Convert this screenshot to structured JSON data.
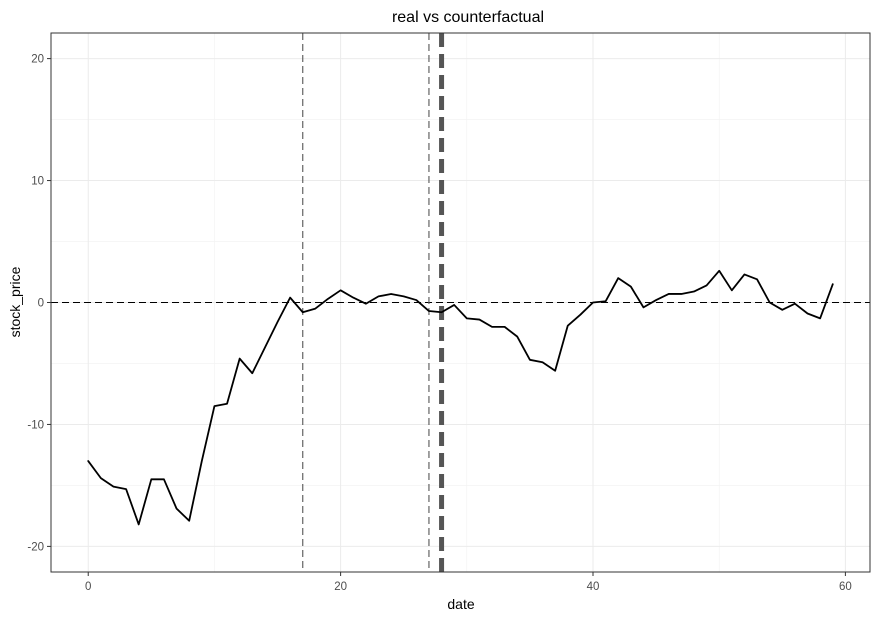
{
  "chart_data": {
    "type": "line",
    "title": "real vs counterfactual",
    "xlabel": "date",
    "ylabel": "stock_price",
    "xlim": [
      -2.95,
      61.95
    ],
    "ylim": [
      -22.1,
      22.1
    ],
    "x_ticks": [
      0,
      20,
      40,
      60
    ],
    "y_ticks": [
      -20,
      -10,
      0,
      10,
      20
    ],
    "grid": true,
    "series": [
      {
        "color": "#000000",
        "x": [
          0,
          1,
          2,
          3,
          4,
          5,
          6,
          7,
          8,
          9,
          10,
          11,
          12,
          13,
          14,
          15,
          16,
          17,
          18,
          19,
          20,
          21,
          22,
          23,
          24,
          25,
          26,
          27,
          28,
          29,
          30,
          31,
          32,
          33,
          34,
          35,
          36,
          37,
          38,
          39,
          40,
          41,
          42,
          43,
          44,
          45,
          46,
          47,
          48,
          49,
          50,
          51,
          52,
          53,
          54,
          55,
          56,
          57,
          58,
          59
        ],
        "y": [
          -13.0,
          -14.4,
          -15.1,
          -15.3,
          -18.2,
          -14.5,
          -14.5,
          -16.9,
          -17.9,
          -13.0,
          -8.5,
          -8.3,
          -4.6,
          -5.8,
          -3.7,
          -1.6,
          0.4,
          -0.8,
          -0.5,
          0.3,
          1.0,
          0.4,
          -0.1,
          0.5,
          0.7,
          0.5,
          0.2,
          -0.7,
          -0.8,
          -0.2,
          -1.3,
          -1.4,
          -2.0,
          -2.0,
          -2.8,
          -4.7,
          -4.9,
          -5.6,
          -1.9,
          -1.0,
          0.0,
          0.1,
          2.0,
          1.3,
          -0.4,
          0.2,
          0.7,
          0.7,
          0.9,
          1.4,
          2.6,
          1.0,
          2.3,
          1.9,
          0.0,
          -0.6,
          -0.1,
          -0.9,
          -1.3,
          1.5
        ]
      }
    ],
    "reference_lines": [
      {
        "orientation": "horizontal",
        "value": 0,
        "style": "dashed",
        "color": "#000000"
      },
      {
        "orientation": "vertical",
        "value": 17,
        "style": "dashed",
        "color": "#555555"
      },
      {
        "orientation": "vertical",
        "value": 27,
        "style": "dashed",
        "color": "#555555"
      },
      {
        "orientation": "vertical",
        "value": 28,
        "style": "dashed-bold",
        "color": "#555555"
      }
    ]
  }
}
